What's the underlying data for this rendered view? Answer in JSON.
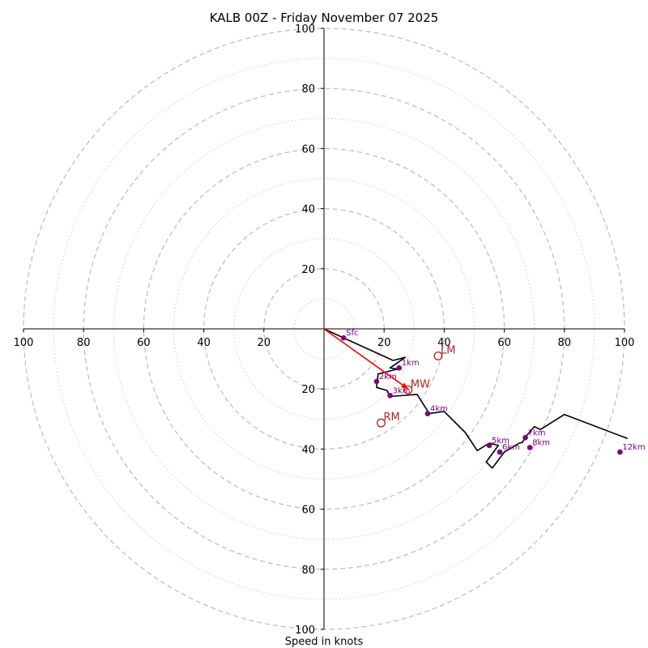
{
  "chart_data": {
    "type": "hodograph",
    "title": "KALB 00Z - Friday November 07 2025",
    "xlabel": "Speed in knots",
    "max_speed": 100,
    "major_rings": [
      20,
      40,
      60,
      80,
      100
    ],
    "minor_rings": [
      10,
      30,
      50,
      70,
      90
    ],
    "x_ticks": [
      "100",
      "80",
      "60",
      "40",
      "20",
      "20",
      "40",
      "60",
      "80",
      "100"
    ],
    "x_tick_values": [
      -100,
      -80,
      -60,
      -40,
      -20,
      20,
      40,
      60,
      80,
      100
    ],
    "y_ticks": [
      "100",
      "80",
      "60",
      "40",
      "20",
      "20",
      "40",
      "60",
      "80",
      "100"
    ],
    "y_tick_values": [
      100,
      80,
      60,
      40,
      20,
      -20,
      -40,
      -60,
      -80,
      -100
    ],
    "colors": {
      "trace": "#000000",
      "height_markers": "#800080",
      "storm_motion": "#b22222",
      "shear_vector": "#ff0000",
      "grid": "#bbbbbb"
    },
    "trace_u": [
      0,
      6.5,
      23,
      27,
      22,
      25,
      24,
      18,
      17.5,
      21,
      22,
      31,
      35,
      40,
      47,
      51,
      55,
      58,
      54,
      56,
      60,
      65,
      66,
      67,
      70,
      72,
      80,
      101
    ],
    "trace_v": [
      0,
      -3,
      -10.5,
      -9.5,
      -13,
      -13.5,
      -13.5,
      -15,
      -19.5,
      -20.5,
      -22.5,
      -21.8,
      -28.2,
      -27.5,
      -34.5,
      -40.5,
      -38,
      -38.8,
      -44.3,
      -46.3,
      -41,
      -38,
      -37.8,
      -36,
      -32.5,
      -33.5,
      -28.5,
      -36.5
    ],
    "height_markers": [
      {
        "label": "Sfc",
        "u": 6.5,
        "v": -3
      },
      {
        "label": "1km",
        "u": 25,
        "v": -13
      },
      {
        "label": "2km",
        "u": 17.5,
        "v": -17.5
      },
      {
        "label": "3km",
        "u": 22,
        "v": -22.2
      },
      {
        "label": "4km",
        "u": 34.5,
        "v": -28.2
      },
      {
        "label": "5km",
        "u": 55,
        "v": -38.8
      },
      {
        "label": "6km",
        "u": 58.5,
        "v": -41
      },
      {
        "label": "7km",
        "u": 67,
        "v": -36.2
      },
      {
        "label": "8km",
        "u": 68.5,
        "v": -39.5
      },
      {
        "label": "12km",
        "u": 98.5,
        "v": -41
      }
    ],
    "storm_motions": [
      {
        "label": "LM",
        "u": 38,
        "v": -9
      },
      {
        "label": "MW",
        "u": 28,
        "v": -20.3
      },
      {
        "label": "RM",
        "u": 19,
        "v": -31.3
      }
    ],
    "shear_vector": {
      "u1": 0,
      "v1": 0,
      "u2": 28,
      "v2": -20
    }
  }
}
